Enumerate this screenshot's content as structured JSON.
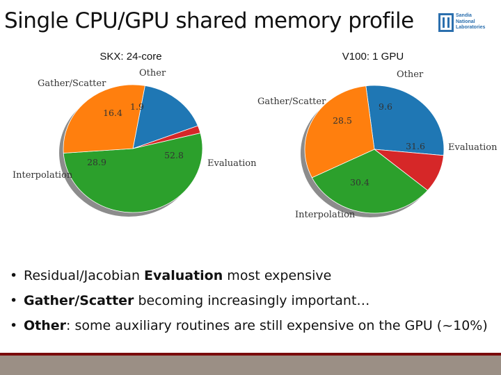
{
  "slide": {
    "title": "Single CPU/GPU shared memory profile",
    "logo_text": [
      "Sandia",
      "National",
      "Laboratories"
    ],
    "bullets": [
      {
        "bold": "",
        "pre": "Residual/Jacobian ",
        "emph": "Evaluation",
        "post": " most expensive"
      },
      {
        "bold": "",
        "pre": "",
        "emph": "Gather/Scatter",
        "post": " becoming increasingly important…"
      },
      {
        "bold": "",
        "pre": "",
        "emph": "Other",
        "post": ": some auxiliary routines are still expensive on the GPU (~10%)"
      }
    ]
  },
  "colors": {
    "Gather/Scatter": "#1f77b4",
    "Other": "#d62728",
    "Evaluation": "#2ca02c",
    "Interpolation": "#ff7f0e",
    "footer": "#9b8f85",
    "footer_line": "#7a0b0b"
  },
  "chart_data": [
    {
      "type": "pie",
      "title": "SKX: 24-core",
      "categories": [
        "Gather/Scatter",
        "Other",
        "Evaluation",
        "Interpolation"
      ],
      "values": [
        16.4,
        1.9,
        52.8,
        28.9
      ],
      "value_labels": [
        "16.4",
        "1.9",
        "52.8",
        "28.9"
      ]
    },
    {
      "type": "pie",
      "title": "V100: 1 GPU",
      "categories": [
        "Gather/Scatter",
        "Other",
        "Evaluation",
        "Interpolation"
      ],
      "values": [
        28.5,
        9.6,
        31.6,
        30.4
      ],
      "value_labels": [
        "28.5",
        "9.6",
        "31.6",
        "30.4"
      ]
    }
  ]
}
